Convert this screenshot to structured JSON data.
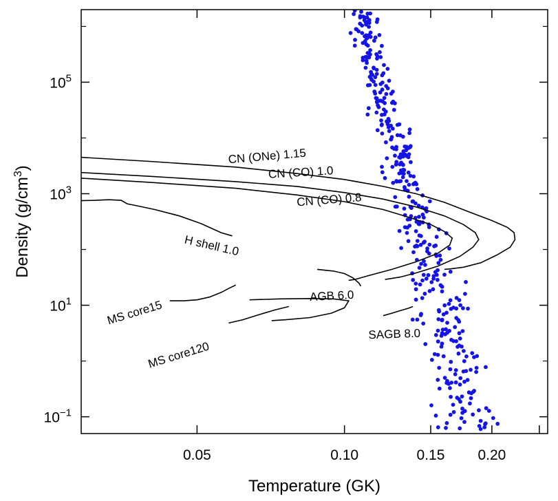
{
  "chart_data": {
    "type": "scatter",
    "title": "",
    "xlabel": "Temperature (GK)",
    "ylabel": "Density (g/cm³)",
    "xscale": "log",
    "yscale": "log",
    "xlim": [
      0.029,
      0.26
    ],
    "ylim": [
      0.05,
      2000000
    ],
    "grid": false,
    "legend": "none",
    "x_ticks": [
      {
        "value": 0.05,
        "label": "0.05"
      },
      {
        "value": 0.1,
        "label": "0.10"
      },
      {
        "value": 0.15,
        "label": "0.15"
      },
      {
        "value": 0.2,
        "label": "0.20"
      }
    ],
    "y_ticks": [
      {
        "value": 0.1,
        "base": "10",
        "exp": "−1"
      },
      {
        "value": 10,
        "base": "10",
        "exp": "1"
      },
      {
        "value": 1000,
        "base": "10",
        "exp": "3"
      },
      {
        "value": 100000,
        "base": "10",
        "exp": "5"
      }
    ],
    "scatter_color": "#1414e6",
    "curve_color": "#000000",
    "curves": [
      {
        "label": "CN (ONe) 1.15",
        "label_pos": {
          "x": 0.058,
          "y": 3500
        },
        "points": [
          [
            0.029,
            4500
          ],
          [
            0.04,
            3800
          ],
          [
            0.06,
            3000
          ],
          [
            0.08,
            2300
          ],
          [
            0.1,
            1800
          ],
          [
            0.12,
            1350
          ],
          [
            0.14,
            1000
          ],
          [
            0.16,
            700
          ],
          [
            0.18,
            470
          ],
          [
            0.2,
            330
          ],
          [
            0.215,
            250
          ],
          [
            0.222,
            200
          ],
          [
            0.223,
            150
          ],
          [
            0.218,
            110
          ],
          [
            0.205,
            80
          ],
          [
            0.19,
            58
          ],
          [
            0.175,
            48
          ],
          [
            0.165,
            45
          ],
          [
            0.16,
            44
          ]
        ]
      },
      {
        "label": "CN (CO) 1.0",
        "label_pos": {
          "x": 0.07,
          "y": 1900
        },
        "points": [
          [
            0.029,
            2400
          ],
          [
            0.04,
            2050
          ],
          [
            0.06,
            1650
          ],
          [
            0.08,
            1350
          ],
          [
            0.1,
            1050
          ],
          [
            0.12,
            800
          ],
          [
            0.14,
            580
          ],
          [
            0.16,
            400
          ],
          [
            0.175,
            280
          ],
          [
            0.185,
            200
          ],
          [
            0.188,
            150
          ],
          [
            0.183,
            110
          ],
          [
            0.172,
            75
          ],
          [
            0.155,
            50
          ],
          [
            0.14,
            38
          ],
          [
            0.13,
            32
          ],
          [
            0.124,
            30
          ],
          [
            0.121,
            29
          ]
        ]
      },
      {
        "label": "CN (CO) 0.8",
        "label_pos": {
          "x": 0.08,
          "y": 600
        },
        "points": [
          [
            0.029,
            1900
          ],
          [
            0.04,
            1600
          ],
          [
            0.06,
            1250
          ],
          [
            0.08,
            950
          ],
          [
            0.1,
            720
          ],
          [
            0.12,
            520
          ],
          [
            0.135,
            380
          ],
          [
            0.15,
            280
          ],
          [
            0.16,
            210
          ],
          [
            0.166,
            160
          ],
          [
            0.164,
            120
          ],
          [
            0.155,
            85
          ],
          [
            0.14,
            60
          ],
          [
            0.125,
            44
          ],
          [
            0.112,
            34
          ],
          [
            0.105,
            29
          ],
          [
            0.102,
            28
          ]
        ]
      },
      {
        "label": "H shell 1.0",
        "label_pos": {
          "x": 0.047,
          "y": 130
        },
        "points": [
          [
            0.029,
            750
          ],
          [
            0.031,
            760
          ],
          [
            0.033,
            780
          ],
          [
            0.035,
            760
          ],
          [
            0.036,
            660
          ],
          [
            0.038,
            600
          ],
          [
            0.041,
            520
          ],
          [
            0.046,
            400
          ],
          [
            0.051,
            290
          ],
          [
            0.056,
            200
          ],
          [
            0.059,
            175
          ]
        ]
      },
      {
        "label": "AGB 6.0",
        "label_pos": {
          "x": 0.085,
          "y": 12
        },
        "points": [
          [
            0.064,
            12.5
          ],
          [
            0.074,
            13
          ],
          [
            0.085,
            13.2
          ],
          [
            0.095,
            13
          ],
          [
            0.102,
            12
          ],
          [
            0.1,
            9
          ],
          [
            0.094,
            7.2
          ],
          [
            0.085,
            6
          ],
          [
            0.076,
            5.5
          ],
          [
            0.071,
            5.3
          ]
        ]
      },
      {
        "label": "MS core15",
        "label_pos": {
          "x": 0.033,
          "y": 4.5
        },
        "points": [
          [
            0.044,
            12
          ],
          [
            0.047,
            12
          ],
          [
            0.05,
            12.5
          ],
          [
            0.053,
            14
          ],
          [
            0.056,
            17
          ],
          [
            0.058,
            20
          ],
          [
            0.06,
            23
          ]
        ]
      },
      {
        "label": "MS core120",
        "label_pos": {
          "x": 0.04,
          "y": 0.75
        },
        "points": [
          [
            0.058,
            4.8
          ],
          [
            0.062,
            5.5
          ],
          [
            0.067,
            6.8
          ],
          [
            0.072,
            8.2
          ],
          [
            0.077,
            9.5
          ]
        ]
      },
      {
        "label": "SAGB 8.0",
        "label_pos": {
          "x": 0.112,
          "y": 2.5
        },
        "points": [
          [
            0.12,
            6.5
          ],
          [
            0.125,
            7.2
          ],
          [
            0.13,
            8
          ],
          [
            0.135,
            8.8
          ],
          [
            0.138,
            9.5
          ]
        ]
      },
      {
        "label": "",
        "label_pos": null,
        "points": [
          [
            0.088,
            44
          ],
          [
            0.095,
            41
          ],
          [
            0.1,
            37
          ],
          [
            0.104,
            31
          ],
          [
            0.107,
            25
          ],
          [
            0.108,
            22
          ]
        ]
      }
    ]
  }
}
